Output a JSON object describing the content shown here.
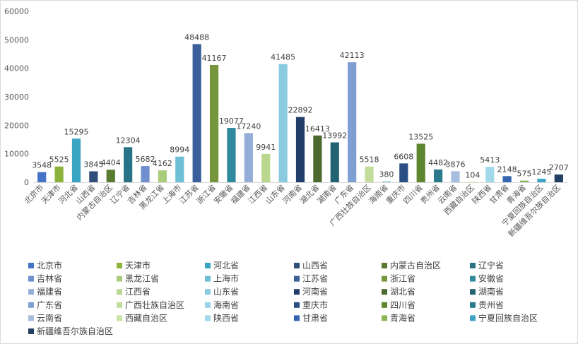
{
  "chart_data": {
    "type": "bar",
    "title": "",
    "xlabel": "",
    "ylabel": "",
    "ylim": [
      0,
      60000
    ],
    "yticks": [
      0,
      10000,
      20000,
      30000,
      40000,
      50000,
      60000
    ],
    "grid": false,
    "legend_position": "bottom",
    "categories": [
      "北京市",
      "天津市",
      "河北省",
      "山西省",
      "内蒙古自治区",
      "辽宁省",
      "吉林省",
      "黑龙江省",
      "上海市",
      "江苏省",
      "浙江省",
      "安徽省",
      "福建省",
      "江西省",
      "山东省",
      "河南省",
      "湖北省",
      "湖南省",
      "广东省",
      "广西壮族自治区",
      "海南省",
      "重庆市",
      "四川省",
      "贵州省",
      "云南省",
      "西藏自治区",
      "陕西省",
      "甘肃省",
      "青海省",
      "宁夏回族自治区",
      "新疆维吾尔族自治区"
    ],
    "values": [
      3548,
      5525,
      15295,
      3845,
      4404,
      12304,
      5682,
      4162,
      8994,
      48488,
      41167,
      19077,
      17240,
      9941,
      41485,
      22892,
      16413,
      13992,
      42113,
      5518,
      380,
      6608,
      13525,
      4482,
      3876,
      104,
      5413,
      2148,
      575,
      1245,
      2707
    ],
    "colors": [
      "#4472c4",
      "#8cb43c",
      "#3aa4c4",
      "#2f4e7a",
      "#5a7a32",
      "#2a7285",
      "#6f8fcf",
      "#a9cc7a",
      "#6dbfd6",
      "#3a5f9a",
      "#76963b",
      "#2f8a9e",
      "#94aed8",
      "#b9d88e",
      "#8bcbe0",
      "#213e6b",
      "#4c6a2e",
      "#236474",
      "#7d9fd2",
      "#c2dd9b",
      "#9bd3e6",
      "#2b4f85",
      "#5e862e",
      "#2b7a8c",
      "#a6bde0",
      "#c8e3a3",
      "#a3d8ea",
      "#3564b0",
      "#8ab554",
      "#3fa3c6",
      "#233d63"
    ]
  }
}
